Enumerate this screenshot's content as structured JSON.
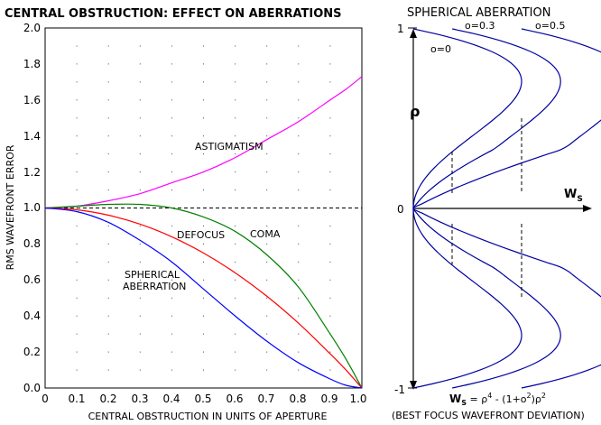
{
  "left_chart": {
    "title": "CENTRAL OBSTRUCTION: EFFECT ON  ABERRATIONS",
    "xlabel": "CENTRAL OBSTRUCTION IN UNITS OF APERTURE",
    "ylabel": "RMS WAVEFRONT ERROR",
    "x_ticks": [
      "0",
      "0.1",
      "0.2",
      "0.3",
      "0.4",
      "0.5",
      "0.6",
      "0.7",
      "0.8",
      "0.9",
      "1.0"
    ],
    "y_ticks": [
      "0.0",
      "0.2",
      "0.4",
      "0.6",
      "0.8",
      "1.0",
      "1.2",
      "1.4",
      "1.6",
      "1.8",
      "2.0"
    ],
    "labels": {
      "astigmatism": "ASTIGMATISM",
      "defocus": "DEFOCUS",
      "coma": "COMA",
      "spherical_1": "SPHERICAL",
      "spherical_2": "ABERRATION"
    }
  },
  "right_chart": {
    "title": "SPHERICAL ABERRATION",
    "y_tick_top": "1",
    "y_tick_mid": "0",
    "y_tick_bottom": "-1",
    "rho_label": "ρ",
    "ws_label": "W",
    "ws_sub": "S",
    "curve_labels": [
      "o=0",
      "o=0.3",
      "o=0.5"
    ],
    "formula": {
      "w": "W",
      "s": "S",
      "eq": " = ρ",
      "p4": "4",
      "mid": " - (1+o",
      "p2a": "2",
      "end": ")ρ",
      "p2b": "2"
    },
    "caption": "(BEST FOCUS WAVEFRONT DEVIATION)"
  },
  "chart_data": [
    {
      "type": "line",
      "title": "CENTRAL OBSTRUCTION: EFFECT ON  ABERRATIONS",
      "xlabel": "CENTRAL OBSTRUCTION IN UNITS OF APERTURE",
      "ylabel": "RMS WAVEFRONT ERROR",
      "xlim": [
        0,
        1.0
      ],
      "ylim": [
        0,
        2.0
      ],
      "grid": "dotted",
      "reference_line": {
        "y": 1.0,
        "style": "dashed"
      },
      "x": [
        0,
        0.1,
        0.2,
        0.3,
        0.4,
        0.5,
        0.6,
        0.7,
        0.8,
        0.9,
        0.95,
        1.0
      ],
      "series": [
        {
          "name": "ASTIGMATISM",
          "color": "#ff00ff",
          "values": [
            1.0,
            1.01,
            1.04,
            1.08,
            1.14,
            1.2,
            1.28,
            1.38,
            1.48,
            1.6,
            1.66,
            1.73
          ]
        },
        {
          "name": "COMA",
          "color": "#008000",
          "values": [
            1.0,
            1.01,
            1.02,
            1.02,
            1.0,
            0.95,
            0.87,
            0.74,
            0.56,
            0.3,
            0.16,
            0.0
          ]
        },
        {
          "name": "DEFOCUS",
          "color": "#ff0000",
          "values": [
            1.0,
            0.99,
            0.96,
            0.91,
            0.84,
            0.75,
            0.64,
            0.51,
            0.36,
            0.19,
            0.1,
            0.0
          ]
        },
        {
          "name": "SPHERICAL ABERRATION",
          "color": "#0000ff",
          "values": [
            1.0,
            0.98,
            0.92,
            0.82,
            0.7,
            0.55,
            0.4,
            0.26,
            0.14,
            0.05,
            0.015,
            0.0
          ]
        }
      ]
    },
    {
      "type": "line",
      "title": "SPHERICAL ABERRATION",
      "xlabel": "W_S",
      "ylabel": "ρ",
      "ylim": [
        -1,
        1
      ],
      "orientation": "x = wavefront deviation, y = ρ",
      "formula": "W_S = ρ^4 - (1+o^2)ρ^2",
      "series": [
        {
          "name": "o=0",
          "obstruction": 0.0,
          "color": "#0000a0",
          "offset": 0.0
        },
        {
          "name": "o=0.3",
          "obstruction": 0.3,
          "color": "#0000a0",
          "offset": 0.09
        },
        {
          "name": "o=0.5",
          "obstruction": 0.5,
          "color": "#0000a0",
          "offset": 0.25
        }
      ]
    }
  ]
}
